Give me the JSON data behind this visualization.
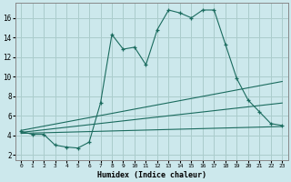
{
  "xlabel": "Humidex (Indice chaleur)",
  "bg_color": "#cce8ec",
  "grid_color": "#aacccc",
  "line_color": "#1a6b5e",
  "xlim": [
    -0.5,
    23.5
  ],
  "ylim": [
    1.5,
    17.5
  ],
  "yticks": [
    2,
    4,
    6,
    8,
    10,
    12,
    14,
    16
  ],
  "xticks": [
    0,
    1,
    2,
    3,
    4,
    5,
    6,
    7,
    8,
    9,
    10,
    11,
    12,
    13,
    14,
    15,
    16,
    17,
    18,
    19,
    20,
    21,
    22,
    23
  ],
  "main_series": {
    "x": [
      0,
      1,
      2,
      3,
      4,
      5,
      6,
      7,
      8,
      9,
      10,
      11,
      12,
      13,
      14,
      15,
      16,
      17,
      18,
      19,
      20,
      21,
      22,
      23
    ],
    "y": [
      4.4,
      4.1,
      4.1,
      3.0,
      2.8,
      2.7,
      3.3,
      7.3,
      14.3,
      12.8,
      13.0,
      11.2,
      14.8,
      16.8,
      16.5,
      16.0,
      16.8,
      16.8,
      13.3,
      9.8,
      7.6,
      6.4,
      5.2,
      5.0
    ]
  },
  "straight_lines": [
    {
      "x": [
        0,
        23
      ],
      "y": [
        4.5,
        9.5
      ]
    },
    {
      "x": [
        0,
        23
      ],
      "y": [
        4.3,
        7.3
      ]
    },
    {
      "x": [
        0,
        23
      ],
      "y": [
        4.2,
        4.9
      ]
    }
  ]
}
